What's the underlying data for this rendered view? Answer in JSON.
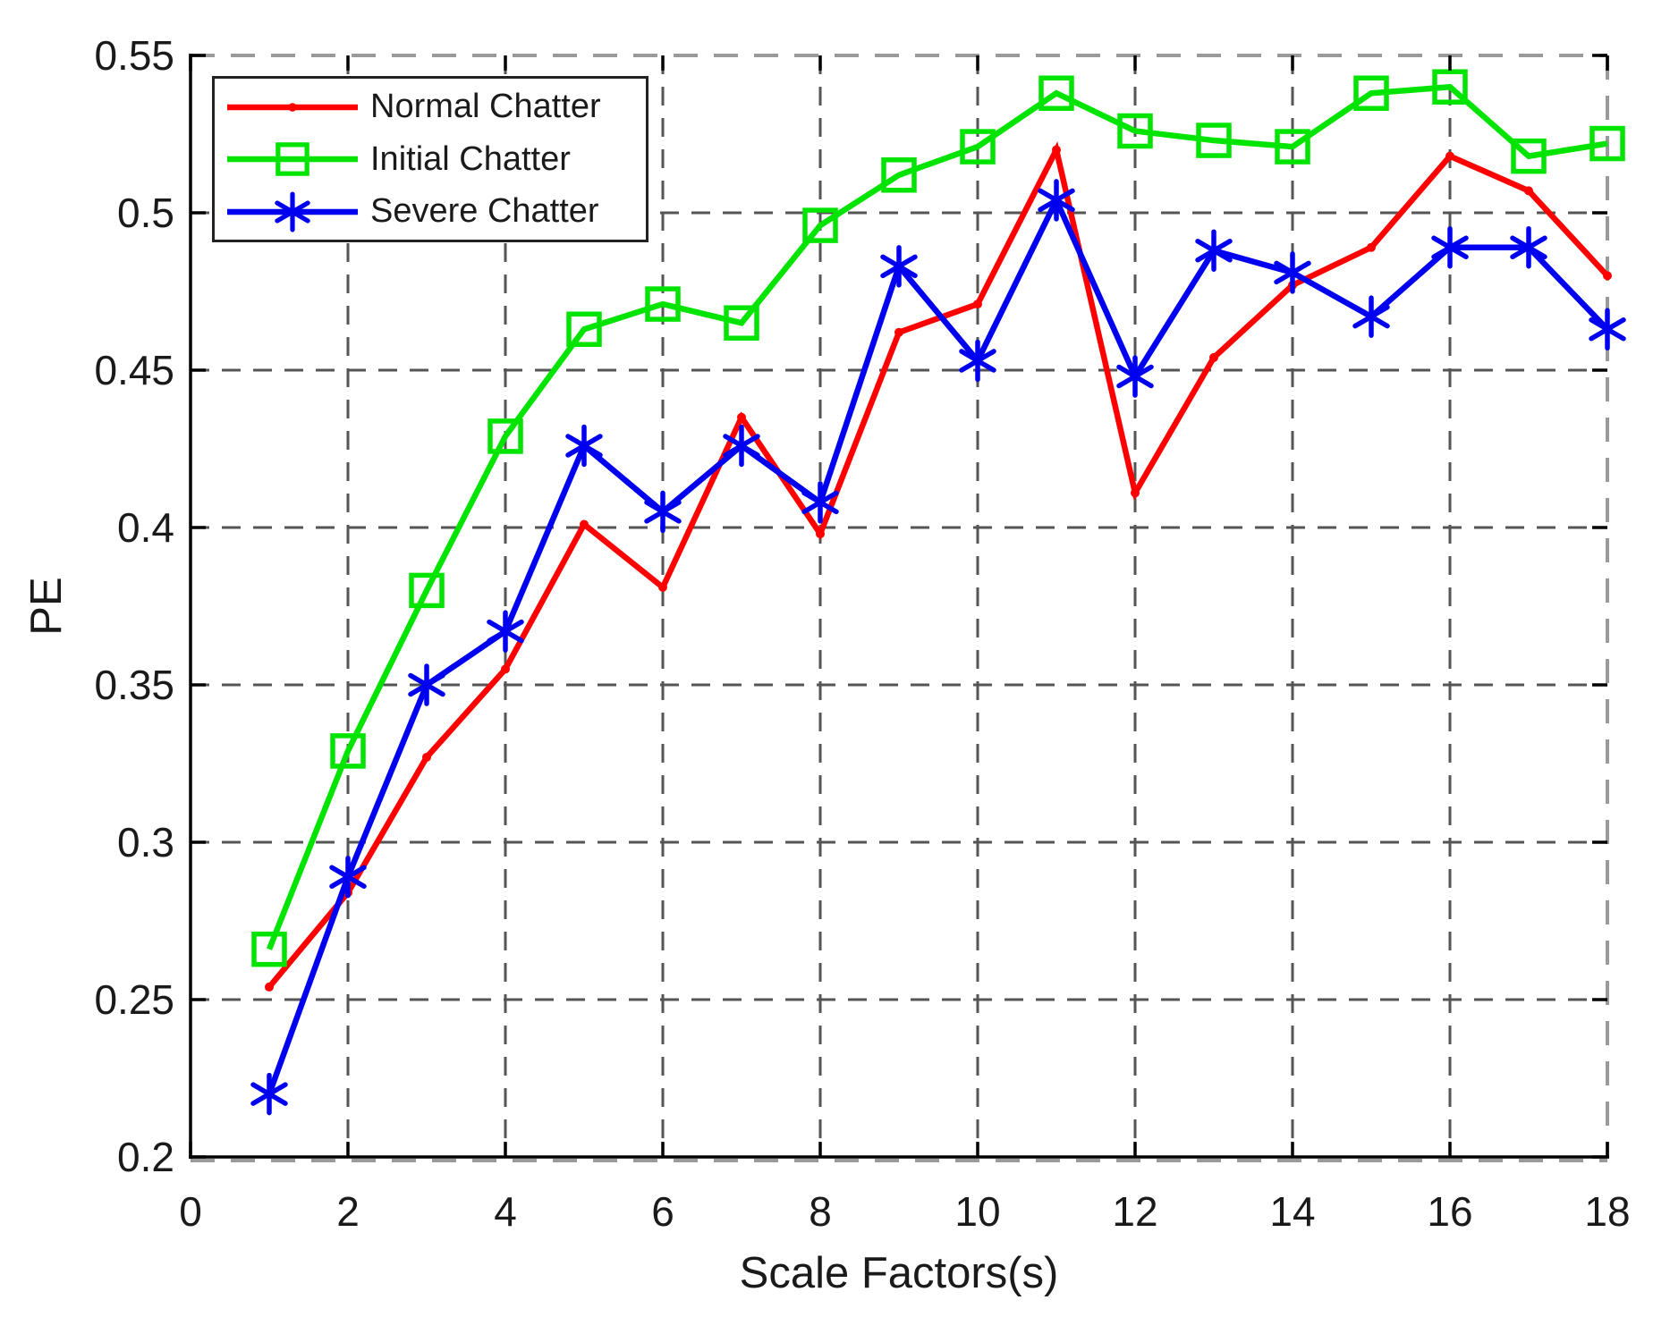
{
  "chart_data": {
    "type": "line",
    "title": "",
    "xlabel": "Scale Factors(s)",
    "ylabel": "PE",
    "xlim": [
      0,
      18
    ],
    "ylim": [
      0.2,
      0.55
    ],
    "xticks": [
      0,
      2,
      4,
      6,
      8,
      10,
      12,
      14,
      16,
      18
    ],
    "xtick_labels": [
      "0",
      "2",
      "4",
      "6",
      "8",
      "10",
      "12",
      "14",
      "16",
      "18"
    ],
    "yticks": [
      0.2,
      0.25,
      0.3,
      0.35,
      0.4,
      0.45,
      0.5,
      0.55
    ],
    "ytick_labels": [
      "0.2",
      "0.25",
      "0.3",
      "0.35",
      "0.4",
      "0.45",
      "0.5",
      "0.55"
    ],
    "grid": true,
    "grid_style": "dashed",
    "legend_position": "top-left",
    "x": [
      1,
      2,
      3,
      4,
      5,
      6,
      7,
      8,
      9,
      10,
      11,
      12,
      13,
      14,
      15,
      16,
      17,
      18
    ],
    "series": [
      {
        "name": "Normal Chatter",
        "color": "#ff0000",
        "marker": "dot",
        "values": [
          0.254,
          0.284,
          0.327,
          0.355,
          0.401,
          0.381,
          0.435,
          0.398,
          0.462,
          0.471,
          0.52,
          0.411,
          0.454,
          0.477,
          0.489,
          0.518,
          0.507,
          0.48
        ]
      },
      {
        "name": "Initial Chatter",
        "color": "#00e400",
        "marker": "square",
        "values": [
          0.266,
          0.329,
          0.38,
          0.429,
          0.463,
          0.471,
          0.465,
          0.496,
          0.512,
          0.521,
          0.538,
          0.526,
          0.523,
          0.521,
          0.538,
          0.54,
          0.518,
          0.522
        ]
      },
      {
        "name": "Severe Chatter",
        "color": "#0000f0",
        "marker": "asterisk",
        "values": [
          0.22,
          0.289,
          0.35,
          0.367,
          0.426,
          0.405,
          0.426,
          0.408,
          0.483,
          0.453,
          0.504,
          0.448,
          0.488,
          0.481,
          0.467,
          0.489,
          0.489,
          0.463
        ]
      }
    ],
    "colors": {
      "axis": "#000000",
      "tick_text": "#1a1a1a",
      "grid_inner": "#555555",
      "grid_border": "#9a9a9a",
      "background": "#ffffff"
    }
  }
}
